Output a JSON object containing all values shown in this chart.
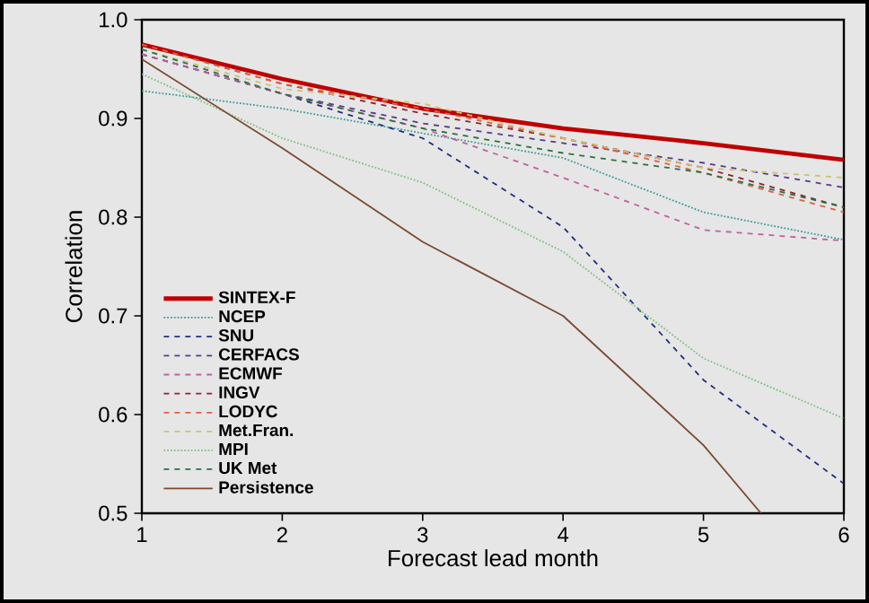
{
  "chart_data": {
    "type": "line",
    "xlabel": "Forecast lead month",
    "ylabel": "Correlation",
    "x": [
      1,
      2,
      3,
      4,
      5,
      6
    ],
    "xlim": [
      1,
      6
    ],
    "xticks": [
      1,
      2,
      3,
      4,
      5,
      6
    ],
    "ylim": [
      0.5,
      1.0
    ],
    "yticks": [
      0.5,
      0.6,
      0.7,
      0.8,
      0.9,
      {
        "value": 1.0,
        "label": "1.0"
      }
    ],
    "legend": "bottom left",
    "grid": false,
    "marker": "none",
    "series": [
      {
        "name": "SINTEX-F",
        "color": "#c00000",
        "line_style": "solid",
        "values": [
          0.975,
          0.94,
          0.91,
          0.89,
          0.875,
          0.858
        ]
      },
      {
        "name": "NCEP",
        "color": "#3a9a9a",
        "line_style": "dotted",
        "values": [
          0.928,
          0.91,
          0.885,
          0.86,
          0.805,
          0.777
        ]
      },
      {
        "name": "SNU",
        "color": "#1f2f7f",
        "line_style": "dashed",
        "values": [
          0.965,
          0.925,
          0.88,
          0.79,
          0.635,
          0.53
        ]
      },
      {
        "name": "CERFACS",
        "color": "#5a3a8a",
        "line_style": "dashed",
        "values": [
          0.965,
          0.925,
          0.895,
          0.875,
          0.855,
          0.83
        ]
      },
      {
        "name": "ECMWF",
        "color": "#c060a0",
        "line_style": "dashed",
        "values": [
          0.965,
          0.925,
          0.89,
          0.84,
          0.787,
          0.776
        ]
      },
      {
        "name": "INGV",
        "color": "#902030",
        "line_style": "dashed",
        "values": [
          0.975,
          0.935,
          0.905,
          0.88,
          0.85,
          0.81
        ]
      },
      {
        "name": "LODYC",
        "color": "#e06040",
        "line_style": "dashed",
        "values": [
          0.975,
          0.935,
          0.91,
          0.88,
          0.845,
          0.805
        ]
      },
      {
        "name": "Met.Fran.",
        "color": "#d0c070",
        "line_style": "dashed",
        "values": [
          0.97,
          0.93,
          0.915,
          0.88,
          0.85,
          0.84
        ]
      },
      {
        "name": "MPI",
        "color": "#80c080",
        "line_style": "dotted",
        "values": [
          0.945,
          0.88,
          0.835,
          0.765,
          0.657,
          0.596
        ]
      },
      {
        "name": "UK Met",
        "color": "#2a7040",
        "line_style": "dashed",
        "values": [
          0.97,
          0.925,
          0.89,
          0.865,
          0.845,
          0.81
        ]
      },
      {
        "name": "Persistence",
        "color": "#7a4a30",
        "line_style": "solid",
        "x": [
          1,
          2,
          3,
          4,
          5,
          5.41
        ],
        "values": [
          0.96,
          0.87,
          0.775,
          0.7,
          0.569,
          0.5
        ]
      }
    ]
  }
}
